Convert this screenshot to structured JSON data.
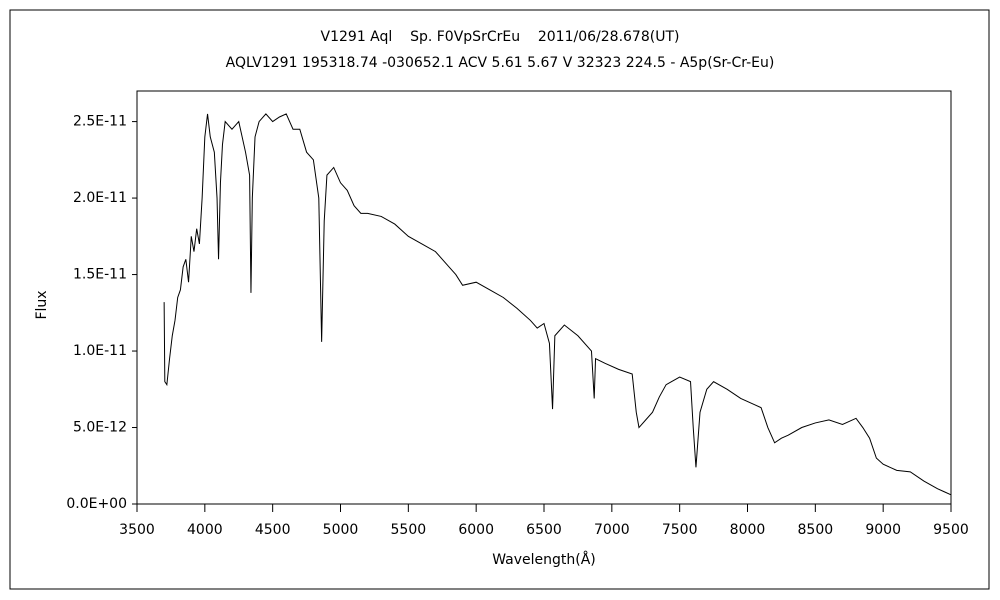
{
  "chart_data": {
    "type": "line",
    "title": "V1291 Aql    Sp. F0VpSrCrEu    2011/06/28.678(UT)",
    "subtitle": "AQLV1291 195318.74 -030652.1 ACV 5.61 5.67 V 32323 224.5 - A5p(Sr-Cr-Eu)",
    "x_label": "Wavelength(Å)",
    "y_label": "Flux",
    "color": "#000000",
    "grid": false,
    "xlim": [
      3500,
      9500
    ],
    "xticks": [
      3500,
      4000,
      4500,
      5000,
      5500,
      6000,
      6500,
      7000,
      7500,
      8000,
      8500,
      9000,
      9500
    ],
    "ylim": [
      0,
      2.7e-11
    ],
    "yticks": [
      {
        "value": 0,
        "label": "0.0E+00"
      },
      {
        "value": 5e-12,
        "label": "5.0E-12"
      },
      {
        "value": 1e-11,
        "label": "1.0E-11"
      },
      {
        "value": 1.5e-11,
        "label": "1.5E-11"
      },
      {
        "value": 2e-11,
        "label": "2.0E-11"
      },
      {
        "value": 2.5e-11,
        "label": "2.5E-11"
      }
    ],
    "x": [
      3700,
      3705,
      3720,
      3740,
      3760,
      3780,
      3800,
      3820,
      3840,
      3860,
      3880,
      3900,
      3920,
      3940,
      3960,
      3980,
      4000,
      4020,
      4040,
      4070,
      4090,
      4101,
      4115,
      4130,
      4150,
      4200,
      4250,
      4300,
      4330,
      4340,
      4350,
      4370,
      4400,
      4450,
      4500,
      4550,
      4600,
      4650,
      4700,
      4750,
      4800,
      4840,
      4861,
      4880,
      4900,
      4950,
      5000,
      5050,
      5100,
      5150,
      5200,
      5300,
      5400,
      5500,
      5600,
      5700,
      5800,
      5850,
      5900,
      6000,
      6100,
      6200,
      6300,
      6400,
      6450,
      6500,
      6540,
      6563,
      6580,
      6650,
      6750,
      6850,
      6870,
      6880,
      6950,
      7050,
      7150,
      7180,
      7200,
      7250,
      7300,
      7350,
      7400,
      7500,
      7580,
      7600,
      7620,
      7650,
      7700,
      7750,
      7850,
      7950,
      8050,
      8100,
      8150,
      8200,
      8250,
      8300,
      8400,
      8500,
      8600,
      8700,
      8800,
      8850,
      8900,
      8950,
      9000,
      9100,
      9200,
      9300,
      9400,
      9450,
      9500
    ],
    "values": [
      1.32e-11,
      8e-12,
      7.8e-12,
      9.5e-12,
      1.1e-11,
      1.2e-11,
      1.35e-11,
      1.4e-11,
      1.55e-11,
      1.6e-11,
      1.45e-11,
      1.75e-11,
      1.65e-11,
      1.8e-11,
      1.7e-11,
      2e-11,
      2.4e-11,
      2.55e-11,
      2.4e-11,
      2.3e-11,
      2e-11,
      1.6e-11,
      2.1e-11,
      2.35e-11,
      2.5e-11,
      2.45e-11,
      2.5e-11,
      2.3e-11,
      2.15e-11,
      1.38e-11,
      2e-11,
      2.4e-11,
      2.5e-11,
      2.55e-11,
      2.5e-11,
      2.53e-11,
      2.55e-11,
      2.45e-11,
      2.45e-11,
      2.3e-11,
      2.25e-11,
      2e-11,
      1.06e-11,
      1.85e-11,
      2.15e-11,
      2.2e-11,
      2.1e-11,
      2.05e-11,
      1.95e-11,
      1.9e-11,
      1.9e-11,
      1.88e-11,
      1.83e-11,
      1.75e-11,
      1.7e-11,
      1.65e-11,
      1.55e-11,
      1.5e-11,
      1.43e-11,
      1.45e-11,
      1.4e-11,
      1.35e-11,
      1.28e-11,
      1.2e-11,
      1.15e-11,
      1.18e-11,
      1.05e-11,
      6.2e-12,
      1.1e-11,
      1.17e-11,
      1.1e-11,
      1e-11,
      6.9e-12,
      9.5e-12,
      9.2e-12,
      8.8e-12,
      8.5e-12,
      6e-12,
      5e-12,
      5.5e-12,
      6e-12,
      7e-12,
      7.8e-12,
      8.3e-12,
      8e-12,
      5e-12,
      2.4e-12,
      6e-12,
      7.5e-12,
      8e-12,
      7.5e-12,
      6.9e-12,
      6.5e-12,
      6.3e-12,
      5e-12,
      4e-12,
      4.3e-12,
      4.5e-12,
      5e-12,
      5.3e-12,
      5.5e-12,
      5.2e-12,
      5.6e-12,
      5e-12,
      4.3e-12,
      3e-12,
      2.6e-12,
      2.2e-12,
      2.1e-12,
      1.5e-12,
      1e-12,
      8e-13,
      6e-13
    ]
  }
}
